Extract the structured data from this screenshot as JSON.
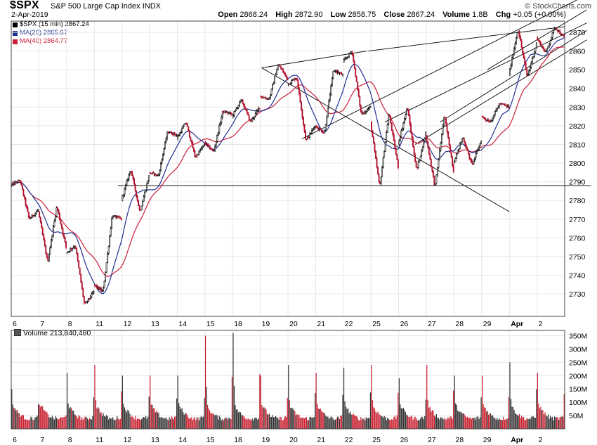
{
  "header": {
    "symbol": "$SPX",
    "description": "S&P 500 Large Cap Index",
    "exchange": "INDX",
    "date": "2-Apr-2019",
    "brand": "© StockCharts.com",
    "open_label": "Open",
    "open": "2868.24",
    "high_label": "High",
    "high": "2872.90",
    "low_label": "Low",
    "low": "2858.75",
    "close_label": "Close",
    "close": "2867.24",
    "volume_label": "Volume",
    "volume": "1.8B",
    "chg_label": "Chg",
    "chg": "+0.05 (+0.00%)"
  },
  "legend": {
    "price": "$SPX (15 min) 2867.24",
    "ma20": "MA(20) 2865.67",
    "ma40": "MA(40) 2864.77",
    "price_color": "#000000",
    "ma20_color": "#1f2f8f",
    "ma40_color": "#cc1f3a"
  },
  "volume_panel": {
    "title": "Volume 213,840,480"
  },
  "chart_data": {
    "type": "candlestick",
    "interval": "15 min",
    "x_tick_labels": [
      "6",
      "7",
      "8",
      "11",
      "12",
      "13",
      "14",
      "15",
      "18",
      "19",
      "20",
      "21",
      "22",
      "25",
      "26",
      "27",
      "28",
      "29",
      "Apr",
      "2"
    ],
    "price_axis": {
      "ylim": [
        2718,
        2876
      ],
      "ticks": [
        2730,
        2740,
        2750,
        2760,
        2770,
        2780,
        2790,
        2800,
        2810,
        2820,
        2830,
        2840,
        2850,
        2860,
        2870
      ]
    },
    "volume_axis": {
      "ylim": [
        0,
        370
      ],
      "ticks": [
        "50M",
        "100M",
        "150M",
        "200M",
        "250M",
        "300M",
        "350M"
      ]
    },
    "daily": [
      {
        "date": "6",
        "open": 2788,
        "high": 2791,
        "low": 2770,
        "close": 2775,
        "volume_peak": 150
      },
      {
        "date": "7",
        "open": 2774,
        "high": 2777,
        "low": 2747,
        "close": 2755,
        "volume_peak": 90
      },
      {
        "date": "8",
        "open": 2752,
        "high": 2756,
        "low": 2724,
        "close": 2731,
        "volume_peak": 210
      },
      {
        "date": "11",
        "open": 2735,
        "high": 2772,
        "low": 2731,
        "close": 2770,
        "volume_peak": 240
      },
      {
        "date": "12",
        "open": 2780,
        "high": 2797,
        "low": 2774,
        "close": 2793,
        "volume_peak": 200
      },
      {
        "date": "13",
        "open": 2795,
        "high": 2817,
        "low": 2793,
        "close": 2815,
        "volume_peak": 200
      },
      {
        "date": "14",
        "open": 2813,
        "high": 2822,
        "low": 2803,
        "close": 2810,
        "volume_peak": 200
      },
      {
        "date": "15",
        "open": 2811,
        "high": 2828,
        "low": 2806,
        "close": 2826,
        "volume_peak": 350
      },
      {
        "date": "18",
        "open": 2825,
        "high": 2834,
        "low": 2822,
        "close": 2830,
        "volume_peak": 360
      },
      {
        "date": "19",
        "open": 2836,
        "high": 2853,
        "low": 2834,
        "close": 2845,
        "volume_peak": 200
      },
      {
        "date": "20",
        "open": 2842,
        "high": 2846,
        "low": 2812,
        "close": 2820,
        "volume_peak": 240
      },
      {
        "date": "21",
        "open": 2820,
        "high": 2850,
        "low": 2816,
        "close": 2847,
        "volume_peak": 210
      },
      {
        "date": "22",
        "open": 2854,
        "high": 2860,
        "low": 2826,
        "close": 2830,
        "volume_peak": 230
      },
      {
        "date": "25",
        "open": 2822,
        "high": 2827,
        "low": 2787,
        "close": 2798,
        "volume_peak": 240
      },
      {
        "date": "26",
        "open": 2810,
        "high": 2830,
        "low": 2796,
        "close": 2816,
        "volume_peak": 190
      },
      {
        "date": "27",
        "open": 2815,
        "high": 2826,
        "low": 2787,
        "close": 2796,
        "volume_peak": 240
      },
      {
        "date": "28",
        "open": 2800,
        "high": 2814,
        "low": 2799,
        "close": 2812,
        "volume_peak": 200
      },
      {
        "date": "29",
        "open": 2825,
        "high": 2832,
        "low": 2822,
        "close": 2830,
        "volume_peak": 200
      },
      {
        "date": "Apr",
        "open": 2847,
        "high": 2872,
        "low": 2846,
        "close": 2864,
        "volume_peak": 250
      },
      {
        "date": "2",
        "open": 2867,
        "high": 2873,
        "low": 2859,
        "close": 2867,
        "volume_peak": 210
      }
    ],
    "trendlines_day_index": [
      {
        "from": [
          9.05,
          2851
        ],
        "to": [
          12.85,
          2860
        ]
      },
      {
        "from": [
          9.05,
          2851
        ],
        "to": [
          18.0,
          2774
        ]
      },
      {
        "from": [
          3.85,
          2788
        ],
        "to": [
          20.95,
          2788
        ]
      },
      {
        "from": [
          10.5,
          2813
        ],
        "to": [
          20.8,
          2890
        ]
      },
      {
        "from": [
          13.5,
          2822
        ],
        "to": [
          20.8,
          2875
        ]
      },
      {
        "from": [
          14.6,
          2810
        ],
        "to": [
          20.8,
          2866
        ]
      },
      {
        "from": [
          15.5,
          2822
        ],
        "to": [
          20.8,
          2871
        ]
      },
      {
        "from": [
          12.9,
          2860
        ],
        "to": [
          20.0,
          2873
        ]
      },
      {
        "from": [
          17.2,
          2850
        ],
        "to": [
          20.8,
          2882
        ]
      }
    ]
  }
}
